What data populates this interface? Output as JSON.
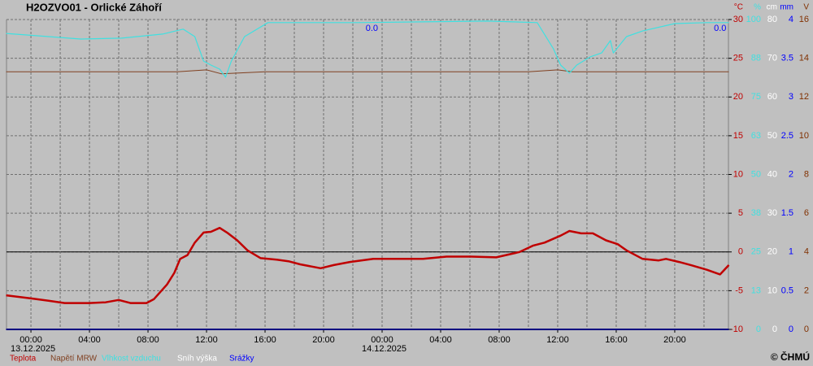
{
  "chart_data": {
    "type": "line",
    "title": "H2OZVO01 - Orlické Záhoří",
    "credit": "© ČHMÚ",
    "xlim": [
      -1.67,
      47.67
    ],
    "xticks": [
      {
        "value": 0,
        "label": "00:00"
      },
      {
        "value": 4,
        "label": "04:00"
      },
      {
        "value": 8,
        "label": "08:00"
      },
      {
        "value": 12,
        "label": "12:00"
      },
      {
        "value": 16,
        "label": "16:00"
      },
      {
        "value": 20,
        "label": "20:00"
      },
      {
        "value": 24,
        "label": "00:00"
      },
      {
        "value": 28,
        "label": "04:00"
      },
      {
        "value": 32,
        "label": "08:00"
      },
      {
        "value": 36,
        "label": "12:00"
      },
      {
        "value": 40,
        "label": "16:00"
      },
      {
        "value": 44,
        "label": "20:00"
      }
    ],
    "xgrid_minor": [
      2,
      6,
      10,
      14,
      18,
      22,
      26,
      30,
      34,
      38,
      42,
      46
    ],
    "date_labels": [
      {
        "value": 0,
        "label": "13.12.2025"
      },
      {
        "value": 24,
        "label": "14.12.2025"
      }
    ],
    "grid": true,
    "zero_line": 0,
    "axes": [
      {
        "unit": "°C",
        "color": "#c00000",
        "lim": [
          -10,
          30
        ],
        "ticks": [
          30,
          25,
          20,
          15,
          10,
          5,
          0,
          -5,
          -10
        ]
      },
      {
        "unit": "%",
        "color": "#40e0e0",
        "lim": [
          0,
          100
        ],
        "ticks": [
          100,
          {
            "value": 87.5,
            "label": "88"
          },
          75,
          {
            "value": 62.5,
            "label": "63"
          },
          50,
          {
            "value": 37.5,
            "label": "38"
          },
          25,
          {
            "value": 12.5,
            "label": "13"
          },
          0
        ]
      },
      {
        "unit": "cm",
        "color": "#ffffff",
        "lim": [
          0,
          80
        ],
        "ticks": [
          80,
          70,
          60,
          50,
          40,
          30,
          20,
          10,
          0
        ]
      },
      {
        "unit": "mm",
        "color": "#0000ff",
        "lim": [
          0,
          4
        ],
        "ticks": [
          4,
          3.5,
          3,
          2.5,
          2,
          1.5,
          1,
          0.5,
          0
        ]
      },
      {
        "unit": "V",
        "color": "#803000",
        "lim": [
          0,
          16
        ],
        "ticks": [
          16,
          14,
          12,
          10,
          8,
          6,
          4,
          2,
          0
        ]
      }
    ],
    "series": [
      {
        "name": "Teplota",
        "color": "#c00000",
        "axis": 0,
        "x": [
          -1.7,
          0,
          1.2,
          2.3,
          4,
          5.1,
          6,
          6.8,
          7.9,
          8.4,
          9.3,
          9.8,
          10.2,
          10.7,
          11.2,
          11.8,
          12.3,
          12.9,
          13.4,
          14.1,
          14.8,
          15.7,
          16.8,
          17.6,
          18.4,
          19.8,
          20.7,
          21.8,
          23.4,
          25.1,
          26.8,
          28.4,
          30.1,
          31.8,
          33.4,
          34.3,
          35.1,
          36.2,
          36.8,
          37.6,
          38.4,
          39.3,
          40.1,
          40.7,
          41.8,
          42.9,
          43.4,
          44.3,
          45.1,
          46.2,
          47.1,
          47.7
        ],
        "values": [
          -5.6,
          -6.0,
          -6.3,
          -6.6,
          -6.6,
          -6.5,
          -6.2,
          -6.6,
          -6.6,
          -6.1,
          -4.2,
          -2.7,
          -0.9,
          -0.4,
          1.2,
          2.5,
          2.6,
          3.1,
          2.5,
          1.5,
          0.2,
          -0.8,
          -1.0,
          -1.2,
          -1.6,
          -2.1,
          -1.7,
          -1.3,
          -0.9,
          -0.9,
          -0.9,
          -0.6,
          -0.6,
          -0.7,
          0.0,
          0.8,
          1.2,
          2.1,
          2.7,
          2.4,
          2.4,
          1.5,
          1.0,
          0.2,
          -0.9,
          -1.1,
          -0.9,
          -1.3,
          -1.7,
          -2.3,
          -2.9,
          -1.7
        ]
      },
      {
        "name": "Napětí MRW",
        "color": "#804020",
        "axis": 4,
        "x": [
          -1.7,
          4,
          10,
          12,
          13,
          16,
          22,
          28,
          34,
          36,
          37,
          40,
          46,
          47.7
        ],
        "values": [
          13.3,
          13.3,
          13.3,
          13.4,
          13.2,
          13.3,
          13.3,
          13.3,
          13.3,
          13.4,
          13.3,
          13.3,
          13.3,
          13.3
        ]
      },
      {
        "name": "Vlhkost vzduchu",
        "color": "#40e0e0",
        "axis": 1,
        "x": [
          -1.7,
          1.2,
          3.4,
          6.2,
          9,
          10.4,
          11.2,
          11.8,
          12.3,
          12.9,
          13.3,
          13.7,
          14.6,
          16.2,
          22.3,
          31.2,
          34.6,
          35.7,
          36.2,
          36.8,
          37.3,
          38.2,
          39,
          39.6,
          39.8,
          40.7,
          41.8,
          44,
          46.2,
          47.7
        ],
        "values": [
          95.5,
          94.5,
          93.7,
          94,
          95.3,
          96.9,
          94.5,
          86.6,
          85.3,
          84,
          81.4,
          86.6,
          94.5,
          99,
          99,
          99.5,
          99,
          90.6,
          85.3,
          82.7,
          85.3,
          87.9,
          89.2,
          93.2,
          89.2,
          94.5,
          96.3,
          98.7,
          99,
          99
        ]
      },
      {
        "name": "Sníh výška",
        "color": "#ffffff",
        "axis": 2,
        "x": [
          -1.7,
          47.7
        ],
        "values": [
          0,
          0
        ]
      },
      {
        "name": "Srážky",
        "color": "#0000ff",
        "axis": 3,
        "x": [
          -1.7,
          47.7
        ],
        "values": [
          0,
          0
        ]
      }
    ],
    "annotations": [
      {
        "text": "0.0",
        "x": 23.3,
        "color": "#0000ff"
      },
      {
        "text": "0.0",
        "x": 47.1,
        "color": "#0000ff"
      }
    ]
  }
}
